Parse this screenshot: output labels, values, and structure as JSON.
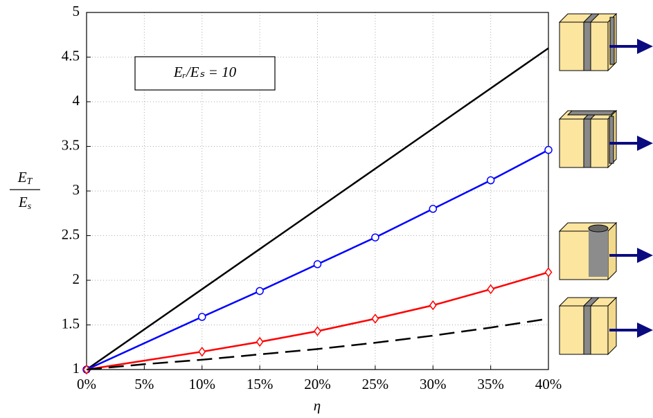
{
  "chart_data": {
    "type": "line",
    "annotation": "Eᵣ/Eₛ = 10",
    "xlabel": "η",
    "ylabel": {
      "numerator": [
        "E",
        "T"
      ],
      "denominator": [
        "E",
        "s"
      ]
    },
    "xlim": [
      0,
      40
    ],
    "ylim": [
      1,
      5
    ],
    "xticks": [
      {
        "value": 0,
        "label": "0%"
      },
      {
        "value": 5,
        "label": "5%"
      },
      {
        "value": 10,
        "label": "10%"
      },
      {
        "value": 15,
        "label": "15%"
      },
      {
        "value": 20,
        "label": "20%"
      },
      {
        "value": 25,
        "label": "25%"
      },
      {
        "value": 30,
        "label": "30%"
      },
      {
        "value": 35,
        "label": "35%"
      },
      {
        "value": 40,
        "label": "40%"
      }
    ],
    "yticks": [
      1,
      1.5,
      2,
      2.5,
      3,
      3.5,
      4,
      4.5,
      5
    ],
    "grid": true,
    "series": [
      {
        "color": "#000000",
        "style": "solid",
        "marker": "none",
        "x": [
          0,
          40
        ],
        "values": [
          1,
          4.6
        ]
      },
      {
        "color": "#0000ff",
        "style": "solid",
        "marker": "circle",
        "x": [
          0,
          10,
          15,
          20,
          25,
          30,
          35,
          40
        ],
        "values": [
          1,
          1.59,
          1.88,
          2.18,
          2.48,
          2.8,
          3.12,
          3.46
        ]
      },
      {
        "color": "#ff0000",
        "style": "solid",
        "marker": "diamond",
        "x": [
          0,
          10,
          15,
          20,
          25,
          30,
          35,
          40
        ],
        "values": [
          1,
          1.2,
          1.31,
          1.43,
          1.57,
          1.72,
          1.9,
          2.09
        ]
      },
      {
        "color": "#000000",
        "style": "dashed",
        "marker": "none",
        "x": [
          0,
          5,
          10,
          15,
          20,
          25,
          30,
          35,
          40
        ],
        "values": [
          1,
          1.06,
          1.11,
          1.17,
          1.23,
          1.3,
          1.38,
          1.47,
          1.57
        ]
      }
    ]
  }
}
